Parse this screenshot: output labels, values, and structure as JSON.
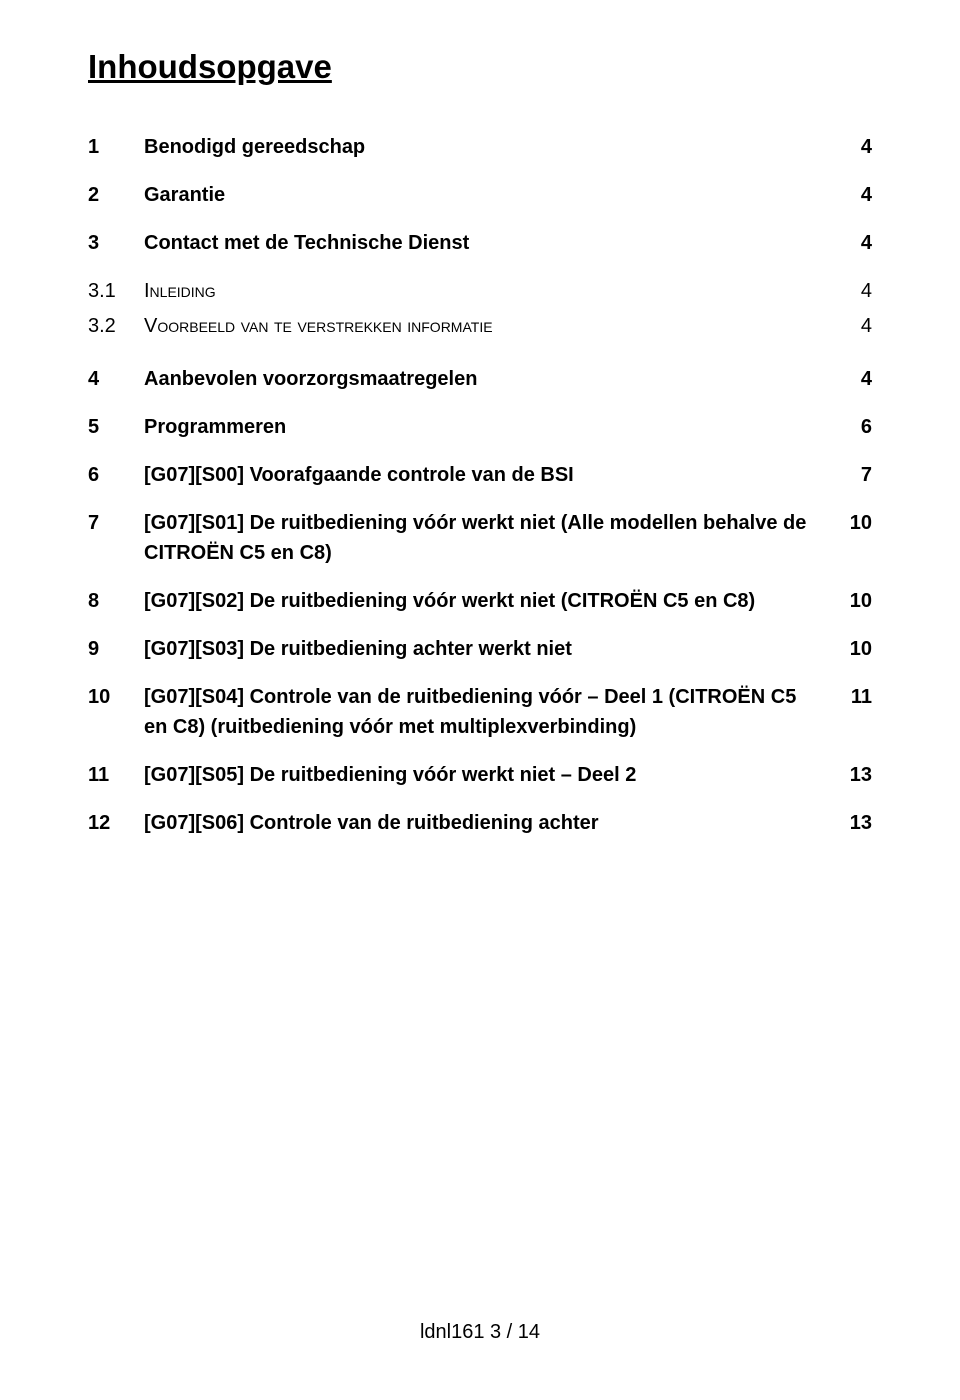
{
  "title": "Inhoudsopgave",
  "entries": [
    {
      "num": "1",
      "label": "Benodigd gereedschap",
      "page": "4",
      "level": 1
    },
    {
      "num": "2",
      "label": "Garantie",
      "page": "4",
      "level": 1
    },
    {
      "num": "3",
      "label": "Contact met de Technische Dienst",
      "page": "4",
      "level": 1
    },
    {
      "num": "3.1",
      "label_sc": "Inleiding",
      "page": "4",
      "level": 2
    },
    {
      "num": "3.2",
      "label_sc": "Voorbeeld van te verstrekken informatie",
      "page": "4",
      "level": 2
    },
    {
      "num": "4",
      "label": "Aanbevolen voorzorgsmaatregelen",
      "page": "4",
      "level": 1
    },
    {
      "num": "5",
      "label": "Programmeren",
      "page": "6",
      "level": 1
    },
    {
      "num": "6",
      "label": "[G07][S00] Voorafgaande controle van de BSI",
      "page": "7",
      "level": 1
    },
    {
      "num": "7",
      "label": "[G07][S01] De ruitbediening vóór werkt niet (Alle modellen behalve de CITROËN C5 en C8)",
      "page": "10",
      "level": 1,
      "wrap": true
    },
    {
      "num": "8",
      "label": "[G07][S02] De ruitbediening vóór werkt niet (CITROËN C5 en C8)",
      "page": "10",
      "level": 1
    },
    {
      "num": "9",
      "label": "[G07][S03] De ruitbediening achter werkt niet",
      "page": "10",
      "level": 1
    },
    {
      "num": "10",
      "label": "[G07][S04] Controle van de ruitbediening vóór – Deel 1 (CITROËN C5 en C8) (ruitbediening vóór met multiplexverbinding)",
      "page": "11",
      "level": 1,
      "wrap": true
    },
    {
      "num": "11",
      "label": "[G07][S05] De ruitbediening vóór werkt niet – Deel 2",
      "page": "13",
      "level": 1
    },
    {
      "num": "12",
      "label": "[G07][S06] Controle van de ruitbediening achter",
      "page": "13",
      "level": 1
    }
  ],
  "footer": "ldnl161          3 / 14",
  "colors": {
    "text": "#000000",
    "background": "#ffffff"
  },
  "typography": {
    "title_size_pt": 25,
    "body_size_pt": 15,
    "font_family": "Arial"
  }
}
